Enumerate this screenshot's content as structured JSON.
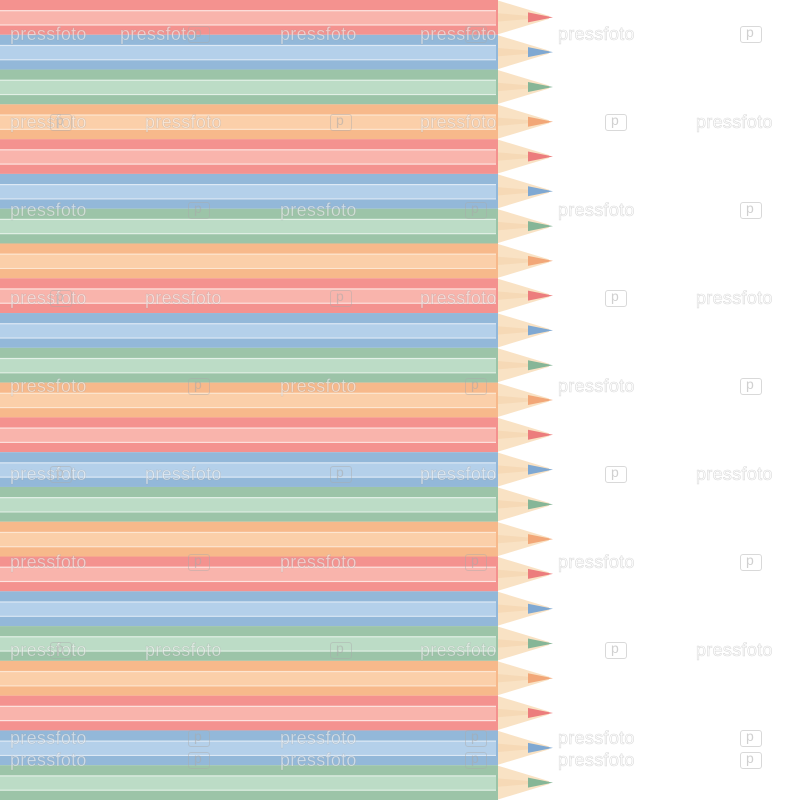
{
  "scene": {
    "subject": "pastel-colored-pencils-border",
    "background_color": "#ffffff",
    "pencil_count": 23,
    "color_sequence": [
      "red",
      "blue",
      "green",
      "orange"
    ],
    "palette": {
      "red": {
        "body": "#f4928f",
        "light": "#f9b4ac",
        "stripe": "#fde4e0",
        "lead": "#ec7d7d"
      },
      "blue": {
        "body": "#93b8d9",
        "light": "#b4d0ea",
        "stripe": "#dde9f5",
        "lead": "#7fa8d2"
      },
      "green": {
        "body": "#9cc4a8",
        "light": "#bcdcc6",
        "stripe": "#e2f0e6",
        "lead": "#86b697"
      },
      "orange": {
        "body": "#f7b98b",
        "light": "#fbcfa9",
        "stripe": "#fde6d1",
        "lead": "#f2a778"
      }
    },
    "wood_color": "#f9e2c4"
  },
  "watermark": {
    "text": "pressfoto",
    "icon": "camera-logo-icon"
  }
}
